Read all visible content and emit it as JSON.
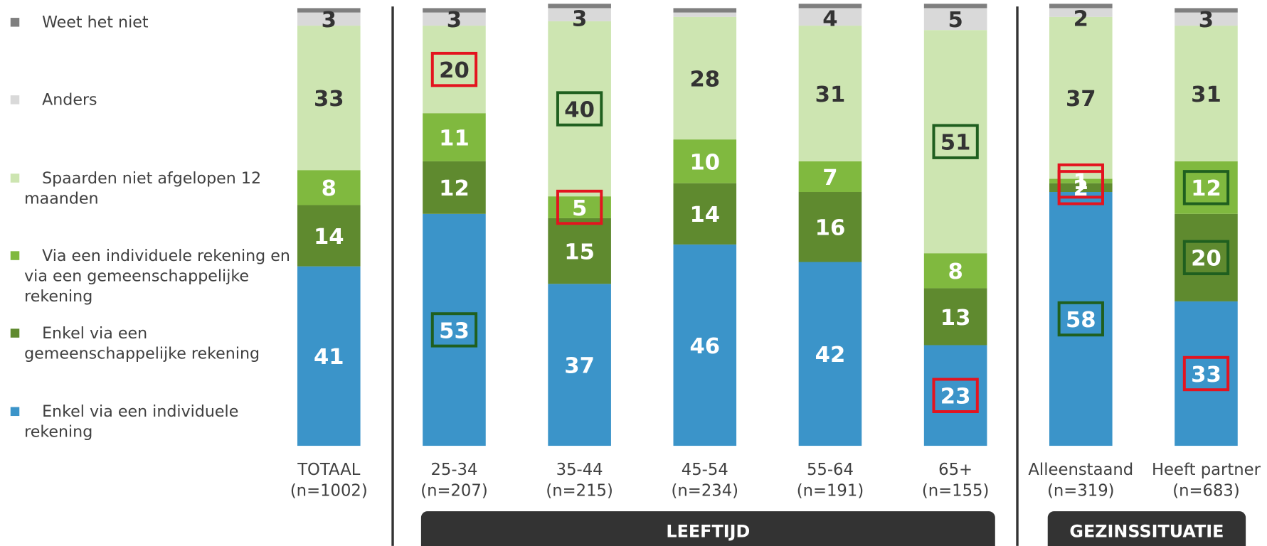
{
  "chart_data": {
    "type": "stacked_bar",
    "categories": [
      "TOTAAL",
      "25-34",
      "35-44",
      "45-54",
      "55-64",
      "65+",
      "Alleenstaand",
      "Heeft partner"
    ],
    "category_notes": [
      "(n=1002)",
      "(n=207)",
      "(n=215)",
      "(n=234)",
      "(n=191)",
      "(n=155)",
      "(n=319)",
      "(n=683)"
    ],
    "groups": [
      {
        "label": "LEEFTIJD",
        "start": 1,
        "end": 5
      },
      {
        "label": "GEZINSSITUATIE",
        "start": 6,
        "end": 7
      }
    ],
    "ylim": [
      0,
      100
    ],
    "legend_order": "reversed",
    "series": [
      {
        "name": "Enkel via een individuele rekening",
        "color": "#3b94c9",
        "label_color": "#ffffff",
        "values": [
          41,
          53,
          37,
          46,
          42,
          23,
          58,
          33
        ],
        "box_colors": [
          null,
          "#1f5f1f",
          null,
          null,
          null,
          "#e3141f",
          "#1f5f1f",
          "#e3141f"
        ]
      },
      {
        "name": "Enkel via een gemeenschappelijke rekening",
        "color": "#5f8a2f",
        "label_color": "#ffffff",
        "values": [
          14,
          12,
          15,
          14,
          16,
          13,
          2,
          20
        ],
        "box_colors": [
          null,
          null,
          null,
          null,
          null,
          null,
          "#e3141f",
          "#1f5f1f"
        ]
      },
      {
        "name": "Via een individuele rekening en via een gemeenschappelijke rekening",
        "color": "#80b93f",
        "label_color": "#ffffff",
        "values": [
          8,
          11,
          5,
          10,
          7,
          8,
          1,
          12
        ],
        "box_colors": [
          null,
          null,
          "#e3141f",
          null,
          null,
          null,
          "#e3141f",
          "#1f5f1f"
        ]
      },
      {
        "name": "Spaarden niet afgelopen 12 maanden",
        "color": "#cde5b1",
        "label_color": "#333333",
        "values": [
          33,
          20,
          40,
          28,
          31,
          51,
          37,
          31
        ],
        "box_colors": [
          null,
          "#e3141f",
          "#1f5f1f",
          null,
          null,
          "#1f5f1f",
          null,
          null
        ]
      },
      {
        "name": "Anders",
        "color": "#d9d9d9",
        "label_color": "#333333",
        "values": [
          3,
          3,
          3,
          1,
          4,
          5,
          2,
          3
        ],
        "value_labels": [
          "3",
          "3",
          "3",
          null,
          "4",
          "5",
          "2",
          "3"
        ]
      },
      {
        "name": "Weet het niet",
        "color": "#7f7f7f",
        "label_color": "#333333",
        "values": [
          1,
          1,
          1,
          1,
          1,
          1,
          1,
          1
        ],
        "value_labels": [
          null,
          null,
          null,
          null,
          null,
          null,
          null,
          null
        ]
      }
    ]
  }
}
